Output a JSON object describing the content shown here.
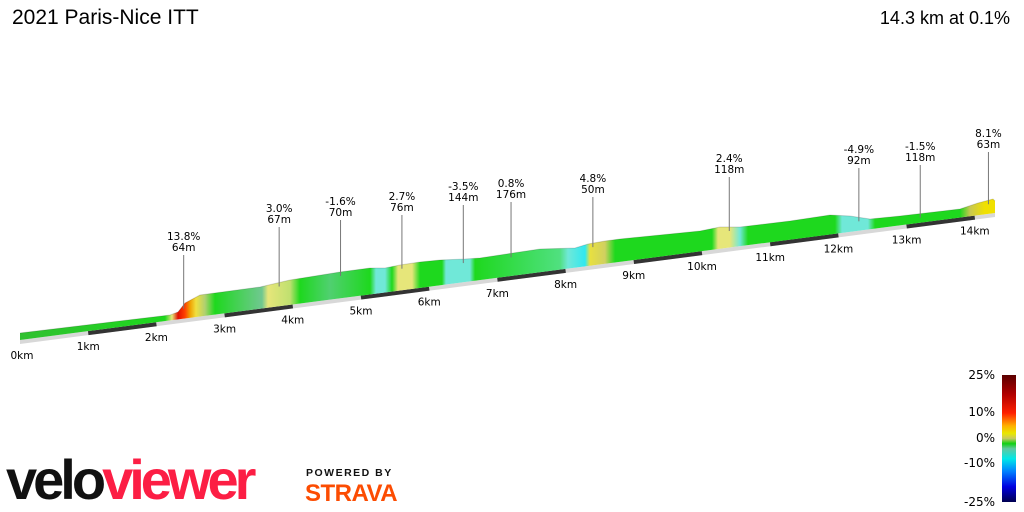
{
  "title": "2021 Paris-Nice ITT",
  "summary": "14.3 km at 0.1%",
  "chart_data": {
    "type": "area",
    "x_unit": "km",
    "x_ticks": [
      "0km",
      "1km",
      "2km",
      "3km",
      "4km",
      "5km",
      "6km",
      "7km",
      "8km",
      "9km",
      "10km",
      "11km",
      "12km",
      "13km",
      "14km"
    ],
    "annotations": [
      {
        "km": 2.4,
        "grade": "13.8%",
        "length": "64m"
      },
      {
        "km": 3.8,
        "grade": "3.0%",
        "length": "67m"
      },
      {
        "km": 4.7,
        "grade": "-1.6%",
        "length": "70m"
      },
      {
        "km": 5.6,
        "grade": "2.7%",
        "length": "76m"
      },
      {
        "km": 6.5,
        "grade": "-3.5%",
        "length": "144m"
      },
      {
        "km": 7.2,
        "grade": "0.8%",
        "length": "176m"
      },
      {
        "km": 8.4,
        "grade": "4.8%",
        "length": "50m"
      },
      {
        "km": 10.4,
        "grade": "2.4%",
        "length": "118m"
      },
      {
        "km": 12.3,
        "grade": "-4.9%",
        "length": "92m"
      },
      {
        "km": 13.2,
        "grade": "-1.5%",
        "length": "118m"
      },
      {
        "km": 14.2,
        "grade": "8.1%",
        "length": "63m"
      }
    ],
    "legend": {
      "title": "",
      "ticks": [
        "25%",
        "10%",
        "0%",
        "-10%",
        "-25%"
      ],
      "range": [
        -25,
        25
      ]
    }
  },
  "logo": {
    "velo": "velo",
    "viewer": "viewer",
    "powered_by": "POWERED BY",
    "strava": "STRAVA"
  },
  "colors": {
    "flat": "#1ed81e",
    "steep": "#cc0000",
    "descent": "#33e0e0",
    "strava": "#fc4c02",
    "veloviewer": "#fc1e44"
  }
}
